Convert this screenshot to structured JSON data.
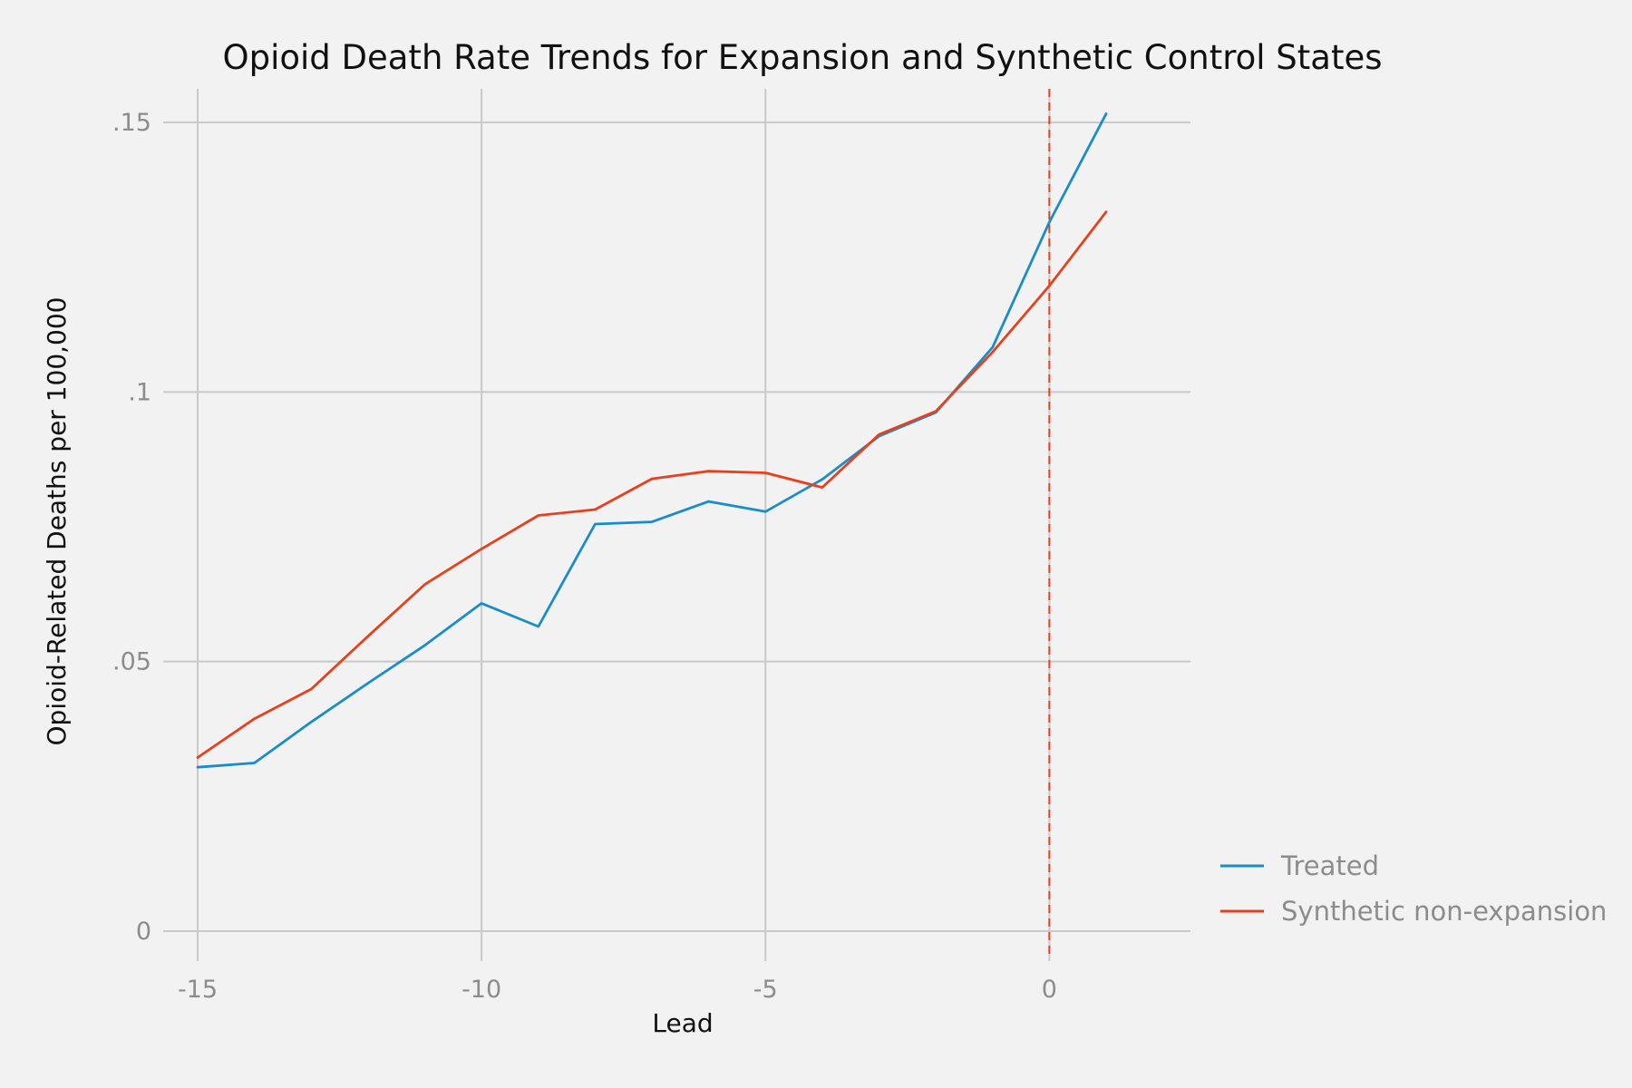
{
  "chart_data": {
    "type": "line",
    "title": "Opioid Death Rate Trends for Expansion and Synthetic Control States",
    "xlabel": "Lead",
    "ylabel": "Opioid-Related Deaths per 100,000",
    "xlim": [
      -15,
      1
    ],
    "ylim": [
      0,
      0.15
    ],
    "x_ticks": [
      -15,
      -10,
      -5,
      0
    ],
    "x_tick_labels": [
      "-15",
      "-10",
      "-5",
      "0"
    ],
    "y_ticks": [
      0,
      0.05,
      0.1,
      0.15
    ],
    "y_tick_labels": [
      "0",
      ".05",
      ".1",
      ".15"
    ],
    "grid": true,
    "legend_position": "right",
    "reference_line": {
      "x": 0,
      "style": "dashed",
      "color": "#e8401c"
    },
    "x": [
      -15,
      -14,
      -13,
      -12,
      -11,
      -10,
      -9,
      -8,
      -7,
      -6,
      -5,
      -4,
      -3,
      -2,
      -1,
      0,
      1
    ],
    "series": [
      {
        "name": "Treated",
        "color": "#1a8dc8",
        "values": [
          0.0304,
          0.0312,
          0.0388,
          0.046,
          0.053,
          0.0608,
          0.0565,
          0.0755,
          0.0759,
          0.0797,
          0.0778,
          0.0838,
          0.0918,
          0.0962,
          0.1083,
          0.1315,
          0.1516
        ]
      },
      {
        "name": "Synthetic non-expansion",
        "color": "#e8401c",
        "values": [
          0.0322,
          0.0394,
          0.0449,
          0.0547,
          0.0643,
          0.0709,
          0.0771,
          0.0782,
          0.0839,
          0.0853,
          0.085,
          0.0823,
          0.0921,
          0.0964,
          0.1074,
          0.1197,
          0.1334
        ]
      }
    ]
  }
}
